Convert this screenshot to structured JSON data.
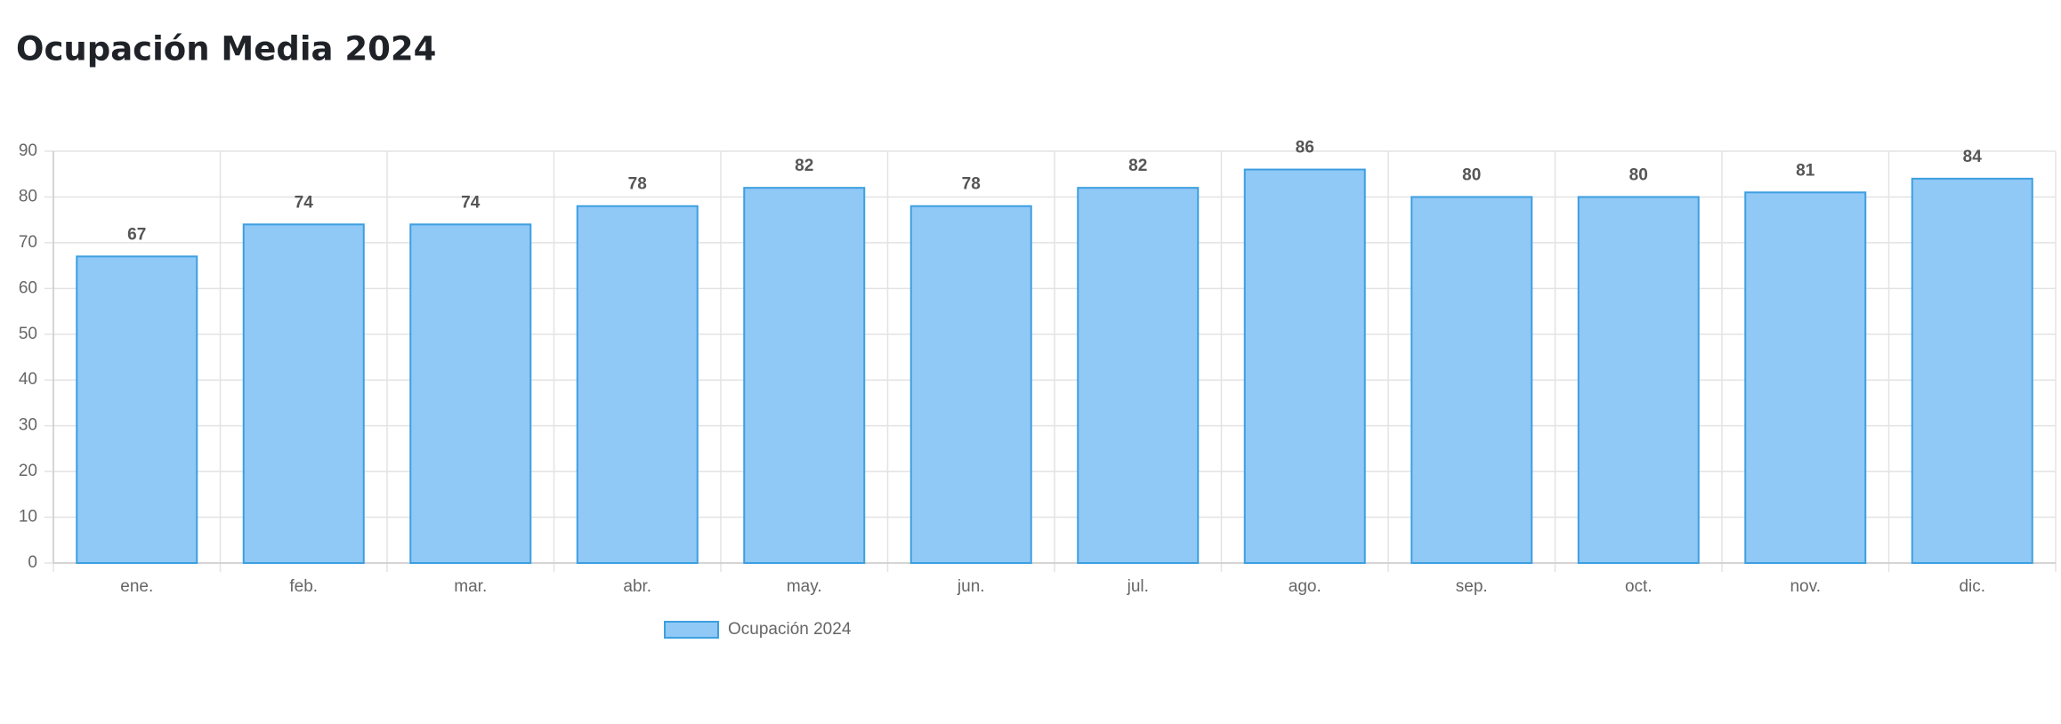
{
  "chart_data": {
    "type": "bar",
    "title": "Ocupación Media 2024",
    "categories": [
      "ene.",
      "feb.",
      "mar.",
      "abr.",
      "may.",
      "jun.",
      "jul.",
      "ago.",
      "sep.",
      "oct.",
      "nov.",
      "dic."
    ],
    "series": [
      {
        "name": "Ocupación 2024",
        "color": "#90c8f6",
        "values": [
          67,
          74,
          74,
          78,
          82,
          78,
          82,
          86,
          80,
          80,
          81,
          84
        ]
      }
    ],
    "ylim": [
      0,
      90
    ],
    "yticks": [
      0,
      10,
      20,
      30,
      40,
      50,
      60,
      70,
      80,
      90
    ],
    "grid": true,
    "legend": "bottom"
  }
}
